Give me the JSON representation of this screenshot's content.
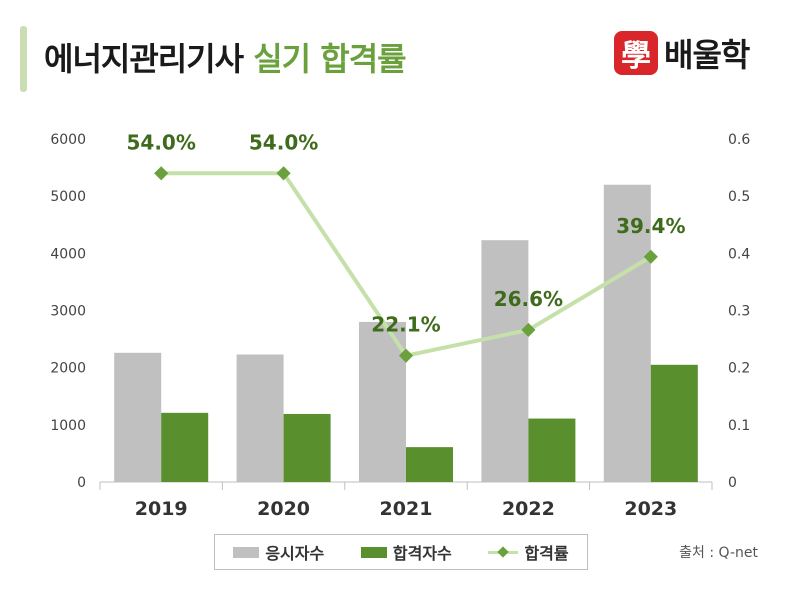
{
  "header": {
    "title_main": "에너지관리기사",
    "title_accent": "실기 합격률",
    "logo_mark": "學",
    "logo_text": "배울학"
  },
  "source": "출처 : Q-net",
  "colors": {
    "applicants": "#c0c0c0",
    "passers": "#5a8f2e",
    "rate_line": "#c5e0a9",
    "rate_marker": "#6aa13d",
    "rate_label": "#3f6b1c",
    "title_accent": "#6aa13d"
  },
  "chart_data": {
    "type": "bar",
    "categories": [
      "2019",
      "2020",
      "2021",
      "2022",
      "2023"
    ],
    "series": [
      {
        "name": "응시자수",
        "type": "bar",
        "axis": "left",
        "values": [
          2260,
          2230,
          2800,
          4230,
          5200
        ]
      },
      {
        "name": "합격자수",
        "type": "bar",
        "axis": "left",
        "values": [
          1210,
          1190,
          610,
          1110,
          2050
        ]
      },
      {
        "name": "합격률",
        "type": "line",
        "axis": "right",
        "values": [
          0.54,
          0.54,
          0.221,
          0.266,
          0.394
        ],
        "labels": [
          "54.0%",
          "54.0%",
          "22.1%",
          "26.6%",
          "39.4%"
        ]
      }
    ],
    "y_left": {
      "ylim": [
        0,
        6000
      ],
      "ticks": [
        "0",
        "1000",
        "2000",
        "3000",
        "4000",
        "5000",
        "6000"
      ]
    },
    "y_right": {
      "ylim": [
        0,
        0.6
      ],
      "ticks": [
        "0",
        "0.1",
        "0.2",
        "0.3",
        "0.4",
        "0.5",
        "0.6"
      ]
    },
    "grid": false,
    "legend": "bottom"
  }
}
